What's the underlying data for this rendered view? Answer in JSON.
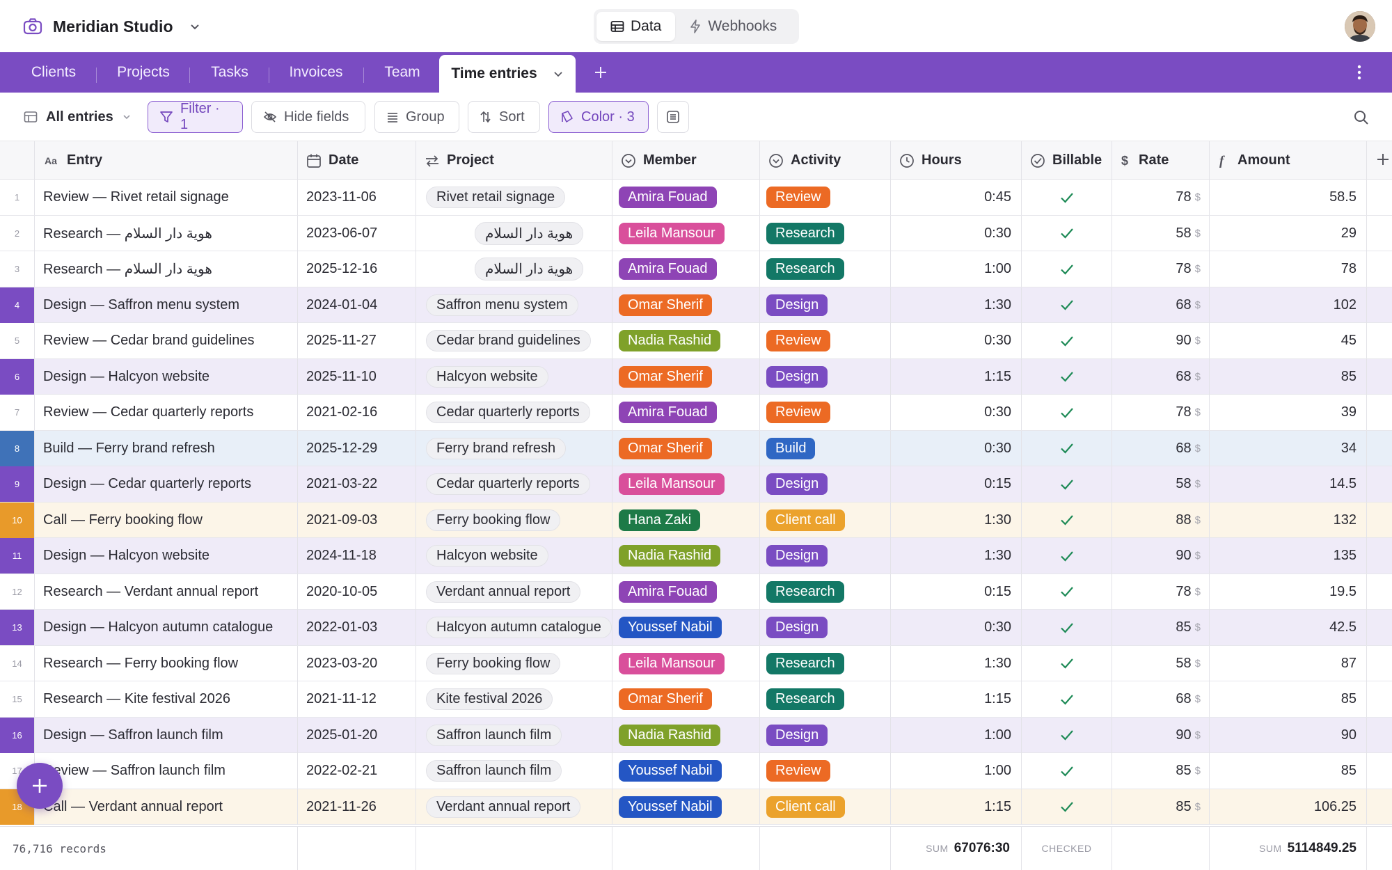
{
  "app": {
    "workspace_name": "Meridian Studio",
    "modes": [
      {
        "label": "Data",
        "icon": "table-icon",
        "active": true
      },
      {
        "label": "Webhooks",
        "icon": "bolt-icon",
        "active": false
      }
    ]
  },
  "tabs": [
    {
      "label": "Clients"
    },
    {
      "label": "Projects"
    },
    {
      "label": "Tasks"
    },
    {
      "label": "Invoices"
    },
    {
      "label": "Team"
    },
    {
      "label": "Time entries",
      "active": true
    }
  ],
  "toolbar": {
    "view_label": "All entries",
    "filter_label": "Filter · 1",
    "hide_fields_label": "Hide fields",
    "group_label": "Group",
    "sort_label": "Sort",
    "color_label": "Color · 3"
  },
  "columns": [
    {
      "label": "Entry",
      "icon": "text-type-icon"
    },
    {
      "label": "Date",
      "icon": "calendar-icon"
    },
    {
      "label": "Project",
      "icon": "link-arrows-icon"
    },
    {
      "label": "Member",
      "icon": "select-icon"
    },
    {
      "label": "Activity",
      "icon": "select-icon"
    },
    {
      "label": "Hours",
      "icon": "clock-icon"
    },
    {
      "label": "Billable",
      "icon": "checkbox-icon"
    },
    {
      "label": "Rate",
      "icon": "dollar-icon"
    },
    {
      "label": "Amount",
      "icon": "formula-icon"
    }
  ],
  "member_colors": {
    "Amira Fouad": "#8e44b5",
    "Leila Mansour": "#d94f9b",
    "Omar Sherif": "#ec6a24",
    "Nadia Rashid": "#7fa12a",
    "Hana Zaki": "#1d7a47",
    "Youssef Nabil": "#2456c4"
  },
  "activity_colors": {
    "Review": "#ec6a24",
    "Research": "#137866",
    "Design": "#7a4cc2",
    "Build": "#2f67c4",
    "Client call": "#eba22c"
  },
  "rows": [
    {
      "n": "1",
      "entry": "Review — Rivet retail signage",
      "date": "2023-11-06",
      "project": "Rivet retail signage",
      "member": "Amira Fouad",
      "activity": "Review",
      "hours": "0:45",
      "billable": true,
      "rate": "78",
      "amount": "58.5",
      "color": "none"
    },
    {
      "n": "2",
      "entry": "Research — هوية دار السلام",
      "date": "2023-06-07",
      "project": "هوية دار السلام",
      "project_rtl": true,
      "member": "Leila Mansour",
      "activity": "Research",
      "hours": "0:30",
      "billable": true,
      "rate": "58",
      "amount": "29",
      "color": "none"
    },
    {
      "n": "3",
      "entry": "Research — هوية دار السلام",
      "date": "2025-12-16",
      "project": "هوية دار السلام",
      "project_rtl": true,
      "member": "Amira Fouad",
      "activity": "Research",
      "hours": "1:00",
      "billable": true,
      "rate": "78",
      "amount": "78",
      "color": "none"
    },
    {
      "n": "4",
      "entry": "Design — Saffron menu system",
      "date": "2024-01-04",
      "project": "Saffron menu system",
      "member": "Omar Sherif",
      "activity": "Design",
      "hours": "1:30",
      "billable": true,
      "rate": "68",
      "amount": "102",
      "color": "design"
    },
    {
      "n": "5",
      "entry": "Review — Cedar brand guidelines",
      "date": "2025-11-27",
      "project": "Cedar brand guidelines",
      "member": "Nadia Rashid",
      "activity": "Review",
      "hours": "0:30",
      "billable": true,
      "rate": "90",
      "amount": "45",
      "color": "none"
    },
    {
      "n": "6",
      "entry": "Design — Halcyon website",
      "date": "2025-11-10",
      "project": "Halcyon website",
      "member": "Omar Sherif",
      "activity": "Design",
      "hours": "1:15",
      "billable": true,
      "rate": "68",
      "amount": "85",
      "color": "design"
    },
    {
      "n": "7",
      "entry": "Review — Cedar quarterly reports",
      "date": "2021-02-16",
      "project": "Cedar quarterly reports",
      "member": "Amira Fouad",
      "activity": "Review",
      "hours": "0:30",
      "billable": true,
      "rate": "78",
      "amount": "39",
      "color": "none"
    },
    {
      "n": "8",
      "entry": "Build — Ferry brand refresh",
      "date": "2025-12-29",
      "project": "Ferry brand refresh",
      "member": "Omar Sherif",
      "activity": "Build",
      "hours": "0:30",
      "billable": true,
      "rate": "68",
      "amount": "34",
      "color": "build"
    },
    {
      "n": "9",
      "entry": "Design — Cedar quarterly reports",
      "date": "2021-03-22",
      "project": "Cedar quarterly reports",
      "member": "Leila Mansour",
      "activity": "Design",
      "hours": "0:15",
      "billable": true,
      "rate": "58",
      "amount": "14.5",
      "color": "design"
    },
    {
      "n": "10",
      "entry": "Call — Ferry booking flow",
      "date": "2021-09-03",
      "project": "Ferry booking flow",
      "member": "Hana Zaki",
      "activity": "Client call",
      "hours": "1:30",
      "billable": true,
      "rate": "88",
      "amount": "132",
      "color": "call"
    },
    {
      "n": "11",
      "entry": "Design — Halcyon website",
      "date": "2024-11-18",
      "project": "Halcyon website",
      "member": "Nadia Rashid",
      "activity": "Design",
      "hours": "1:30",
      "billable": true,
      "rate": "90",
      "amount": "135",
      "color": "design"
    },
    {
      "n": "12",
      "entry": "Research — Verdant annual report",
      "date": "2020-10-05",
      "project": "Verdant annual report",
      "member": "Amira Fouad",
      "activity": "Research",
      "hours": "0:15",
      "billable": true,
      "rate": "78",
      "amount": "19.5",
      "color": "none"
    },
    {
      "n": "13",
      "entry": "Design — Halcyon autumn catalogue",
      "date": "2022-01-03",
      "project": "Halcyon autumn catalogue",
      "member": "Youssef Nabil",
      "activity": "Design",
      "hours": "0:30",
      "billable": true,
      "rate": "85",
      "amount": "42.5",
      "color": "design"
    },
    {
      "n": "14",
      "entry": "Research — Ferry booking flow",
      "date": "2023-03-20",
      "project": "Ferry booking flow",
      "member": "Leila Mansour",
      "activity": "Research",
      "hours": "1:30",
      "billable": true,
      "rate": "58",
      "amount": "87",
      "color": "none"
    },
    {
      "n": "15",
      "entry": "Research — Kite festival 2026",
      "date": "2021-11-12",
      "project": "Kite festival 2026",
      "member": "Omar Sherif",
      "activity": "Research",
      "hours": "1:15",
      "billable": true,
      "rate": "68",
      "amount": "85",
      "color": "none"
    },
    {
      "n": "16",
      "entry": "Design — Saffron launch film",
      "date": "2025-01-20",
      "project": "Saffron launch film",
      "member": "Nadia Rashid",
      "activity": "Design",
      "hours": "1:00",
      "billable": true,
      "rate": "90",
      "amount": "90",
      "color": "design"
    },
    {
      "n": "17",
      "entry": "Review — Saffron launch film",
      "date": "2022-02-21",
      "project": "Saffron launch film",
      "member": "Youssef Nabil",
      "activity": "Review",
      "hours": "1:00",
      "billable": true,
      "rate": "85",
      "amount": "85",
      "color": "none"
    },
    {
      "n": "18",
      "entry": "Call — Verdant annual report",
      "date": "2021-11-26",
      "project": "Verdant annual report",
      "member": "Youssef Nabil",
      "activity": "Client call",
      "hours": "1:15",
      "billable": true,
      "rate": "85",
      "amount": "106.25",
      "color": "call"
    }
  ],
  "rate_currency": "$",
  "footer": {
    "records": "76,716 records",
    "hours_label": "SUM",
    "hours_value": "67076:30",
    "billable_label": "CHECKED",
    "amount_label": "SUM",
    "amount_value": "5114849.25"
  }
}
